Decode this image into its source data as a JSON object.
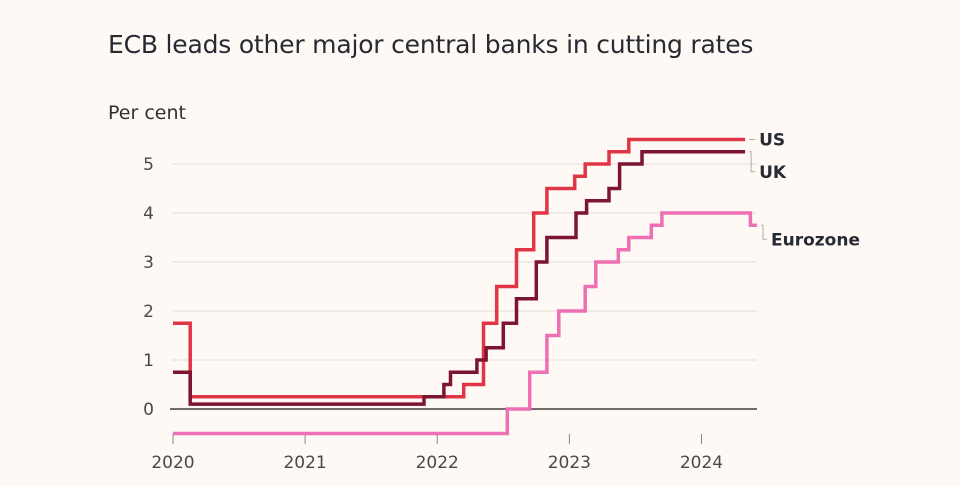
{
  "chart_data": {
    "type": "line",
    "step": true,
    "title": "ECB leads other major central banks in cutting rates",
    "ylabel": "Per cent",
    "xlabel": "",
    "xlim": [
      2020.0,
      2024.42
    ],
    "ylim": [
      -0.5,
      5.5
    ],
    "x_ticks": [
      2020,
      2021,
      2022,
      2023,
      2024
    ],
    "y_ticks": [
      0,
      1,
      2,
      3,
      4,
      5
    ],
    "grid": "horizontal",
    "legend": "direct labels at right end of lines",
    "colors": {
      "background": "#fff9f5",
      "gridline": "#e3dcd5",
      "zero_line": "#1a1817",
      "axis_text": "#4d4845"
    },
    "series": [
      {
        "name": "US",
        "color": "#e03545",
        "points": [
          [
            2020.0,
            1.75
          ],
          [
            2020.13,
            1.75
          ],
          [
            2020.13,
            0.25
          ],
          [
            2022.2,
            0.25
          ],
          [
            2022.2,
            0.5
          ],
          [
            2022.35,
            0.5
          ],
          [
            2022.35,
            1.75
          ],
          [
            2022.45,
            1.75
          ],
          [
            2022.45,
            2.5
          ],
          [
            2022.6,
            2.5
          ],
          [
            2022.6,
            3.25
          ],
          [
            2022.73,
            3.25
          ],
          [
            2022.73,
            4.0
          ],
          [
            2022.83,
            4.0
          ],
          [
            2022.83,
            4.5
          ],
          [
            2023.04,
            4.5
          ],
          [
            2023.04,
            4.75
          ],
          [
            2023.12,
            4.75
          ],
          [
            2023.12,
            5.0
          ],
          [
            2023.3,
            5.0
          ],
          [
            2023.3,
            5.25
          ],
          [
            2023.45,
            5.25
          ],
          [
            2023.45,
            5.5
          ],
          [
            2024.33,
            5.5
          ]
        ]
      },
      {
        "name": "UK",
        "color": "#7d1432",
        "points": [
          [
            2020.0,
            0.75
          ],
          [
            2020.13,
            0.75
          ],
          [
            2020.13,
            0.1
          ],
          [
            2021.9,
            0.1
          ],
          [
            2021.9,
            0.25
          ],
          [
            2022.05,
            0.25
          ],
          [
            2022.05,
            0.5
          ],
          [
            2022.1,
            0.5
          ],
          [
            2022.1,
            0.75
          ],
          [
            2022.3,
            0.75
          ],
          [
            2022.3,
            1.0
          ],
          [
            2022.37,
            1.0
          ],
          [
            2022.37,
            1.25
          ],
          [
            2022.5,
            1.25
          ],
          [
            2022.5,
            1.75
          ],
          [
            2022.6,
            1.75
          ],
          [
            2022.6,
            2.25
          ],
          [
            2022.75,
            2.25
          ],
          [
            2022.75,
            3.0
          ],
          [
            2022.83,
            3.0
          ],
          [
            2022.83,
            3.5
          ],
          [
            2023.05,
            3.5
          ],
          [
            2023.05,
            4.0
          ],
          [
            2023.13,
            4.0
          ],
          [
            2023.13,
            4.25
          ],
          [
            2023.3,
            4.25
          ],
          [
            2023.3,
            4.5
          ],
          [
            2023.38,
            4.5
          ],
          [
            2023.38,
            5.0
          ],
          [
            2023.55,
            5.0
          ],
          [
            2023.55,
            5.25
          ],
          [
            2024.33,
            5.25
          ]
        ]
      },
      {
        "name": "Eurozone",
        "color": "#ef6fb4",
        "points": [
          [
            2020.0,
            -0.5
          ],
          [
            2022.53,
            -0.5
          ],
          [
            2022.53,
            0.0
          ],
          [
            2022.7,
            0.0
          ],
          [
            2022.7,
            0.75
          ],
          [
            2022.83,
            0.75
          ],
          [
            2022.83,
            1.5
          ],
          [
            2022.92,
            1.5
          ],
          [
            2022.92,
            2.0
          ],
          [
            2023.12,
            2.0
          ],
          [
            2023.12,
            2.5
          ],
          [
            2023.2,
            2.5
          ],
          [
            2023.2,
            3.0
          ],
          [
            2023.37,
            3.0
          ],
          [
            2023.37,
            3.25
          ],
          [
            2023.45,
            3.25
          ],
          [
            2023.45,
            3.5
          ],
          [
            2023.62,
            3.5
          ],
          [
            2023.62,
            3.75
          ],
          [
            2023.7,
            3.75
          ],
          [
            2023.7,
            4.0
          ],
          [
            2024.37,
            4.0
          ],
          [
            2024.37,
            3.75
          ],
          [
            2024.42,
            3.75
          ]
        ]
      }
    ]
  }
}
